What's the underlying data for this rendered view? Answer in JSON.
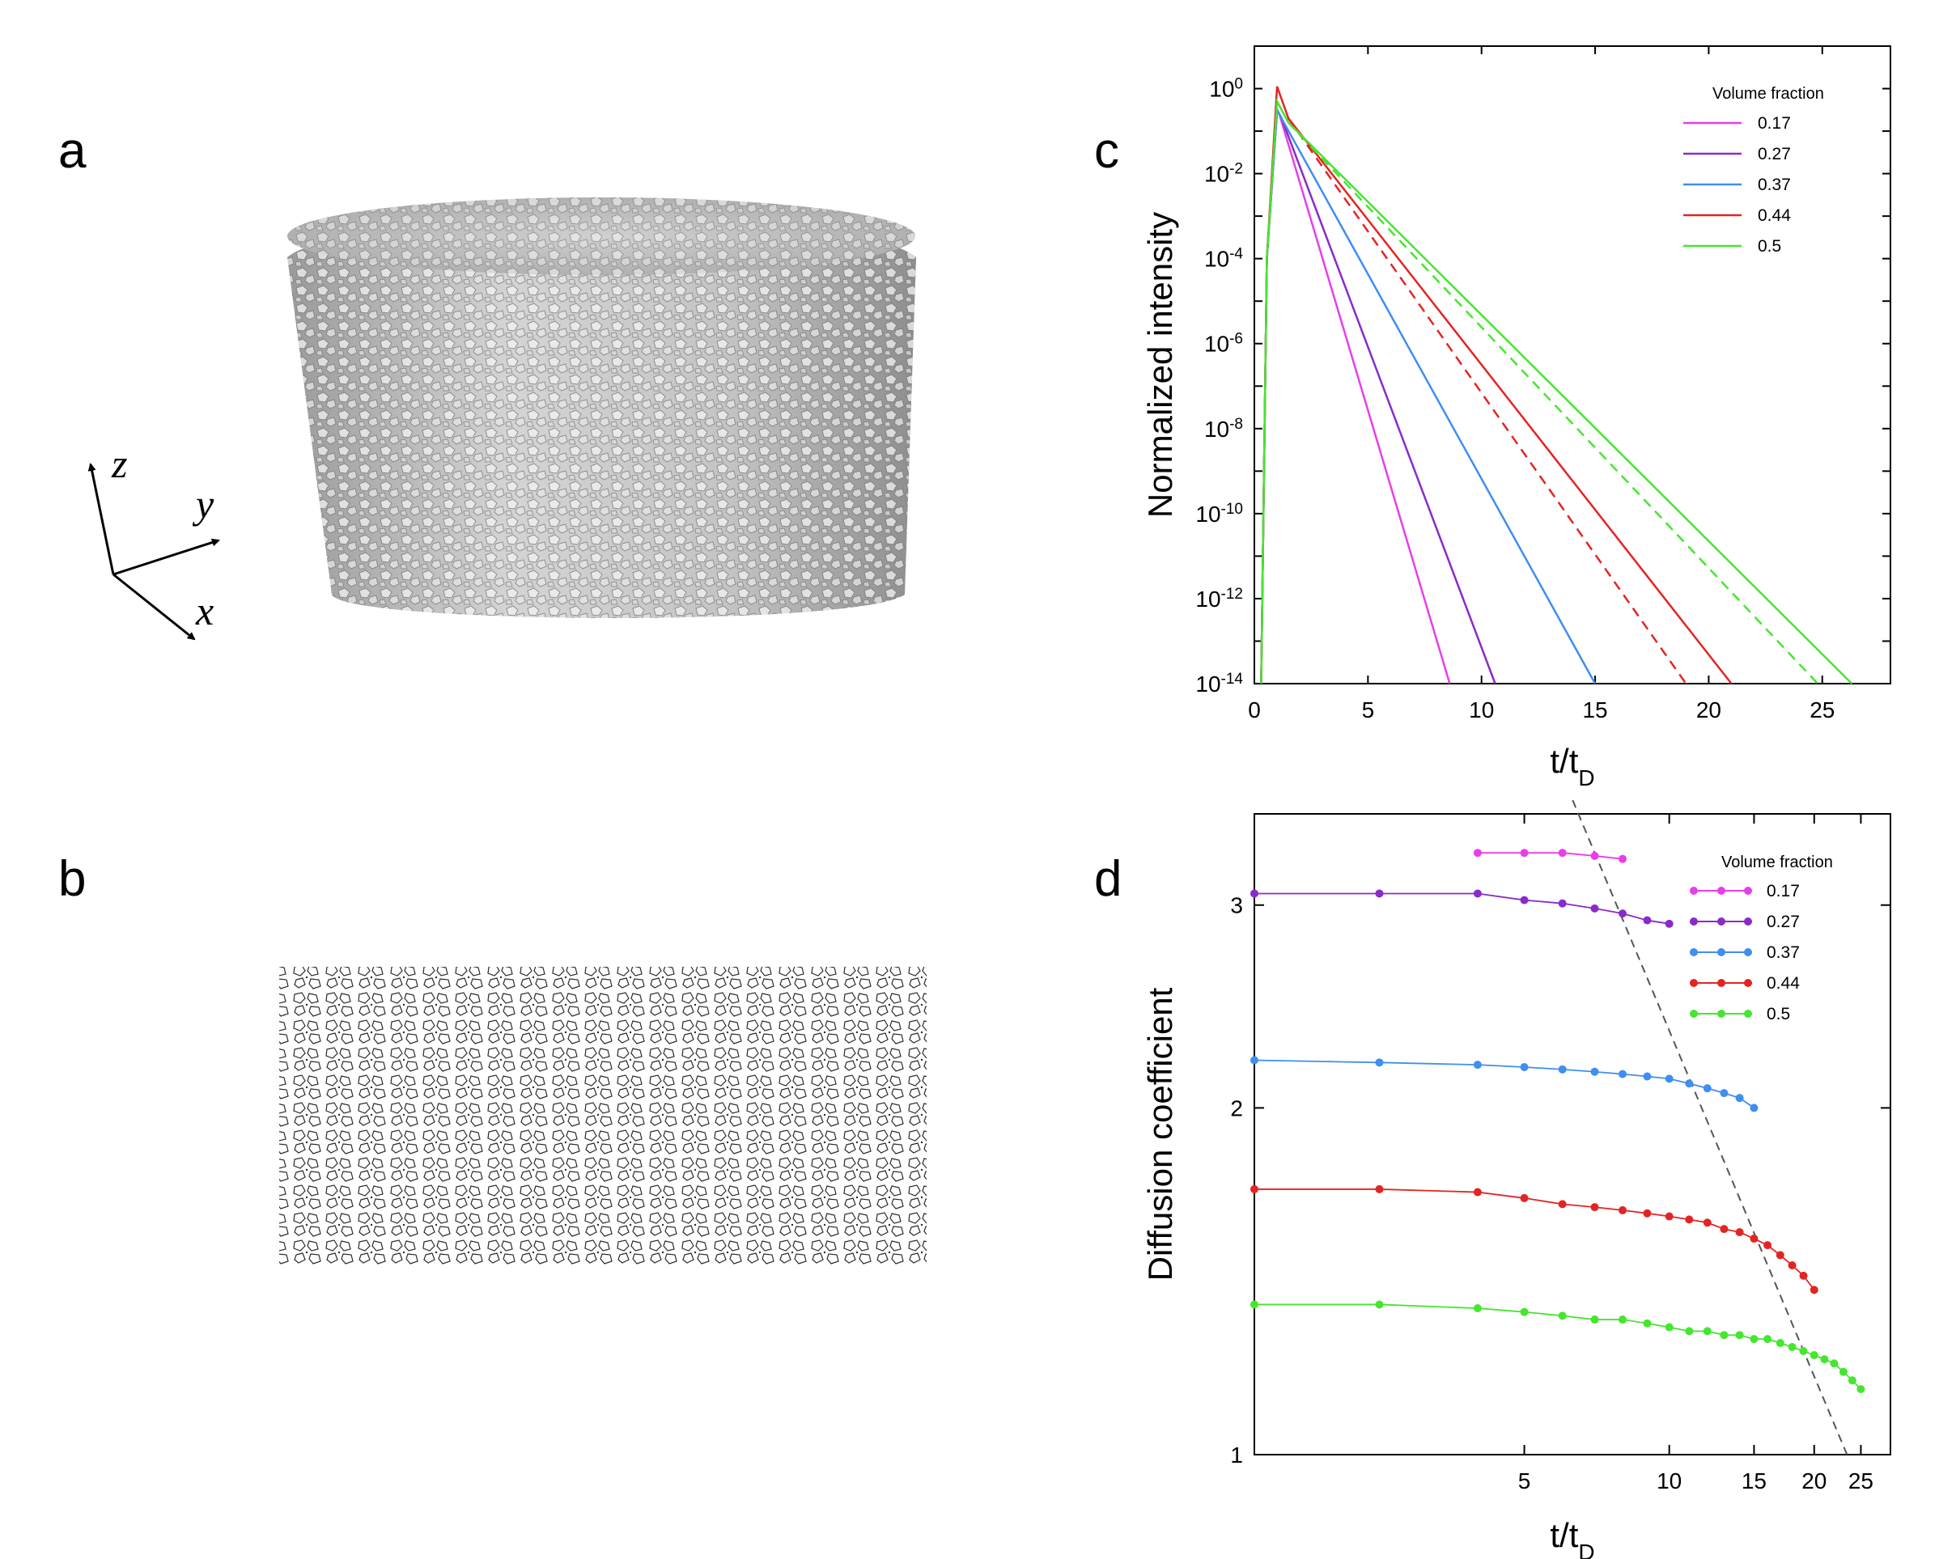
{
  "panels": {
    "a": {
      "letter": "a",
      "axes": {
        "z": "z",
        "y": "y",
        "x": "x"
      }
    },
    "b": {
      "letter": "b"
    },
    "c": {
      "letter": "c"
    },
    "d": {
      "letter": "d"
    }
  },
  "colors": {
    "0.17": "#e83ee8",
    "0.27": "#8a2bc8",
    "0.37": "#3f8ef0",
    "0.44": "#e32424",
    "0.5": "#45e62f",
    "fit": "#555555",
    "render": "#c8c8c8"
  },
  "chart_data": [
    {
      "panel": "c",
      "type": "line",
      "yscale": "log",
      "xlabel": "t/t",
      "xlabel_sub": "D",
      "ylabel": "Normalized intensity",
      "xlim": [
        0,
        28
      ],
      "ylim_exp": [
        -14,
        1
      ],
      "xticks": [
        0,
        5,
        10,
        15,
        20,
        25
      ],
      "xtick_labels": [
        "0",
        "5",
        "10",
        "15",
        "20",
        "25"
      ],
      "yticks_exp": [
        0,
        -2,
        -4,
        -6,
        -8,
        -10,
        -12,
        -14
      ],
      "ytick_base": "10",
      "ytick_exps": [
        "0",
        "-2",
        "-4",
        "-6",
        "-8",
        "-10",
        "-12",
        "-14"
      ],
      "legend_title": "Volume fraction",
      "series": [
        {
          "name": "0.17",
          "peak": [
            1.0,
            -0.5
          ],
          "decay": [
            [
              1.1,
              -0.6
            ],
            [
              8.6,
              -14
            ]
          ]
        },
        {
          "name": "0.27",
          "peak": [
            1.0,
            -0.5
          ],
          "decay": [
            [
              1.2,
              -0.7
            ],
            [
              10.6,
              -14
            ]
          ]
        },
        {
          "name": "0.37",
          "peak": [
            1.0,
            -0.5
          ],
          "decay": [
            [
              1.3,
              -0.8
            ],
            [
              15.0,
              -14
            ]
          ]
        },
        {
          "name": "0.44",
          "peak": [
            1.0,
            0.05
          ],
          "decay": [
            [
              1.5,
              -0.7
            ],
            [
              21.0,
              -14
            ]
          ],
          "fit": [
            [
              1.5,
              -0.7
            ],
            [
              19.0,
              -14
            ]
          ]
        },
        {
          "name": "0.5",
          "peak": [
            1.0,
            -0.3
          ],
          "decay": [
            [
              1.5,
              -0.8
            ],
            [
              26.3,
              -14
            ]
          ],
          "fit": [
            [
              1.5,
              -0.8
            ],
            [
              24.8,
              -14
            ]
          ]
        }
      ]
    },
    {
      "panel": "d",
      "type": "line",
      "xscale": "log",
      "yscale": "log",
      "xlabel": "t/t",
      "xlabel_sub": "D",
      "ylabel": "Diffusion coefficient",
      "xlim": [
        1.375,
        28.8
      ],
      "ylim": [
        1,
        3.6
      ],
      "xticks": [
        5,
        10,
        15,
        20,
        25
      ],
      "xtick_labels": [
        "5",
        "10",
        "15",
        "20",
        "25"
      ],
      "yticks": [
        1,
        2,
        3
      ],
      "ytick_labels": [
        "1",
        "2",
        "3"
      ],
      "legend_title": "Volume fraction",
      "guide_line": [
        [
          6.3,
          3.7
        ],
        [
          23.4,
          1.0
        ]
      ],
      "series": [
        {
          "name": "0.17",
          "x": [
            4.0,
            5.0,
            6.0,
            7.0,
            8.0
          ],
          "y": [
            3.33,
            3.33,
            3.33,
            3.31,
            3.29
          ]
        },
        {
          "name": "0.27",
          "x": [
            1.375,
            2.5,
            4.0,
            5.0,
            6.0,
            7.0,
            8.0,
            9.0,
            10.0
          ],
          "y": [
            3.07,
            3.07,
            3.07,
            3.03,
            3.01,
            2.98,
            2.95,
            2.91,
            2.89
          ]
        },
        {
          "name": "0.37",
          "x": [
            1.375,
            2.5,
            4.0,
            5.0,
            6.0,
            7.0,
            8.0,
            9.0,
            10.0,
            11.0,
            12.0,
            13.0,
            14.0,
            15.0
          ],
          "y": [
            2.2,
            2.19,
            2.18,
            2.17,
            2.16,
            2.15,
            2.14,
            2.13,
            2.12,
            2.1,
            2.08,
            2.06,
            2.04,
            2.0
          ]
        },
        {
          "name": "0.44",
          "x": [
            1.375,
            2.5,
            4.0,
            5.0,
            6.0,
            7.0,
            8.0,
            9.0,
            10.0,
            11.0,
            12.0,
            13.0,
            14.0,
            15.0,
            16.0,
            17.0,
            18.0,
            19.0,
            20.0
          ],
          "y": [
            1.7,
            1.7,
            1.69,
            1.67,
            1.65,
            1.64,
            1.63,
            1.62,
            1.61,
            1.6,
            1.59,
            1.57,
            1.56,
            1.54,
            1.52,
            1.49,
            1.46,
            1.43,
            1.39
          ]
        },
        {
          "name": "0.5",
          "x": [
            1.375,
            2.5,
            4.0,
            5.0,
            6.0,
            7.0,
            8.0,
            9.0,
            10.0,
            11.0,
            12.0,
            13.0,
            14.0,
            15.0,
            16.0,
            17.0,
            18.0,
            19.0,
            20.0,
            21.0,
            22.0,
            23.0,
            24.0,
            25.0
          ],
          "y": [
            1.35,
            1.35,
            1.34,
            1.33,
            1.32,
            1.31,
            1.31,
            1.3,
            1.29,
            1.28,
            1.28,
            1.27,
            1.27,
            1.26,
            1.26,
            1.25,
            1.24,
            1.23,
            1.22,
            1.21,
            1.2,
            1.18,
            1.16,
            1.14
          ]
        }
      ]
    }
  ]
}
